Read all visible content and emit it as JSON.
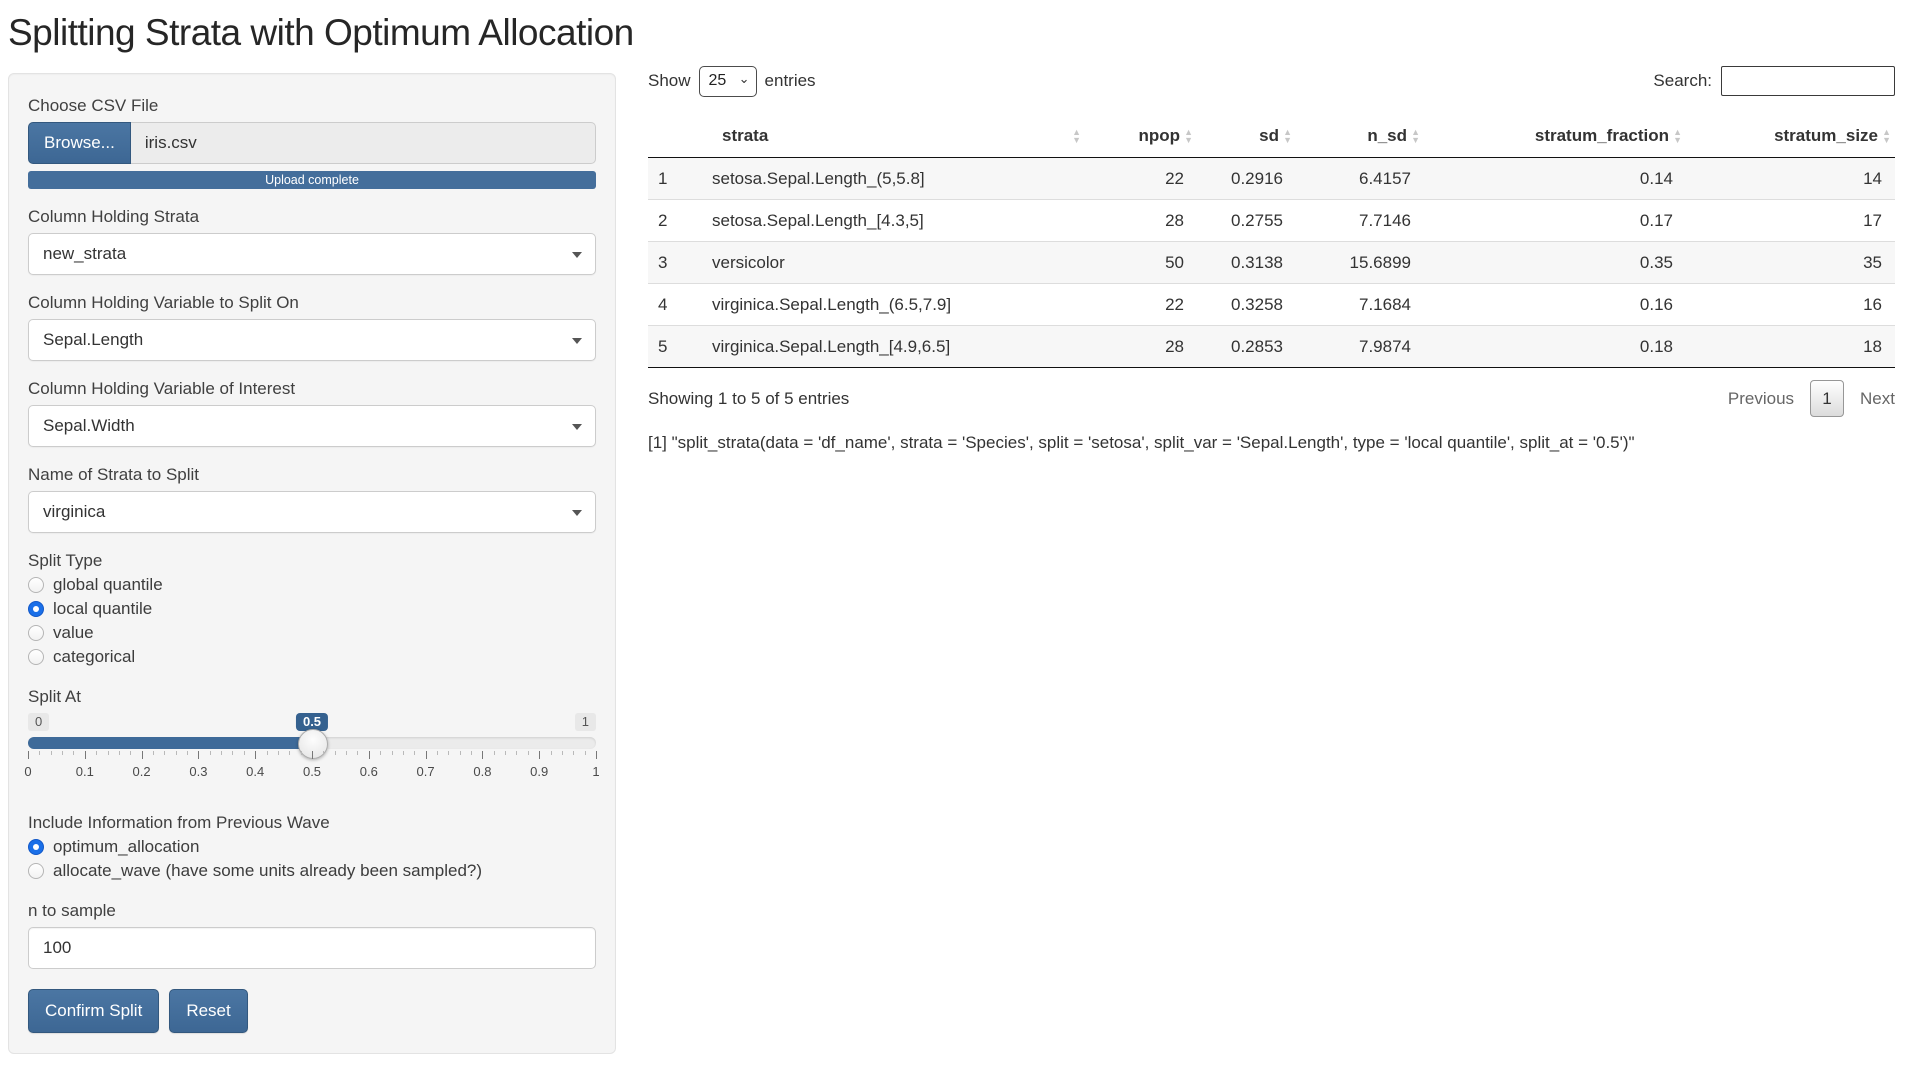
{
  "title": "Splitting Strata with Optimum Allocation",
  "colors": {
    "primary": "#446e9b",
    "slider_fill": "#3e6a99",
    "slider_badge": "#35618f",
    "radio_selected": "#1a6fe8"
  },
  "sidebar": {
    "file_input": {
      "label": "Choose CSV File",
      "browse_label": "Browse...",
      "filename": "iris.csv",
      "progress_text": "Upload complete"
    },
    "selects": [
      {
        "label": "Column Holding Strata",
        "value": "new_strata"
      },
      {
        "label": "Column Holding Variable to Split On",
        "value": "Sepal.Length"
      },
      {
        "label": "Column Holding Variable of Interest",
        "value": "Sepal.Width"
      },
      {
        "label": "Name of Strata to Split",
        "value": "virginica"
      }
    ],
    "split_type": {
      "label": "Split Type",
      "options": [
        {
          "label": "global quantile",
          "selected": false
        },
        {
          "label": "local quantile",
          "selected": true
        },
        {
          "label": "value",
          "selected": false
        },
        {
          "label": "categorical",
          "selected": false
        }
      ]
    },
    "slider": {
      "label": "Split At",
      "min": "0",
      "max": "1",
      "value": "0.5",
      "ticks": [
        "0",
        "0.1",
        "0.2",
        "0.3",
        "0.4",
        "0.5",
        "0.6",
        "0.7",
        "0.8",
        "0.9",
        "1"
      ]
    },
    "previous_wave": {
      "label": "Include Information from Previous Wave",
      "options": [
        {
          "label": "optimum_allocation",
          "selected": true
        },
        {
          "label": "allocate_wave (have some units already been sampled?)",
          "selected": false
        }
      ]
    },
    "n_to_sample": {
      "label": "n to sample",
      "value": "100"
    },
    "buttons": {
      "confirm": "Confirm Split",
      "reset": "Reset"
    }
  },
  "main": {
    "length_control": {
      "prefix": "Show",
      "value": "25",
      "suffix": "entries"
    },
    "search": {
      "label": "Search:",
      "value": ""
    },
    "table": {
      "columns": [
        "",
        "strata",
        "npop",
        "sd",
        "n_sd",
        "stratum_fraction",
        "stratum_size"
      ],
      "rows": [
        [
          "1",
          "setosa.Sepal.Length_(5,5.8]",
          "22",
          "0.2916",
          "6.4157",
          "0.14",
          "14"
        ],
        [
          "2",
          "setosa.Sepal.Length_[4.3,5]",
          "28",
          "0.2755",
          "7.7146",
          "0.17",
          "17"
        ],
        [
          "3",
          "versicolor",
          "50",
          "0.3138",
          "15.6899",
          "0.35",
          "35"
        ],
        [
          "4",
          "virginica.Sepal.Length_(6.5,7.9]",
          "22",
          "0.3258",
          "7.1684",
          "0.16",
          "16"
        ],
        [
          "5",
          "virginica.Sepal.Length_[4.9,6.5]",
          "28",
          "0.2853",
          "7.9874",
          "0.18",
          "18"
        ]
      ]
    },
    "info": "Showing 1 to 5 of 5 entries",
    "pagination": {
      "previous": "Previous",
      "page": "1",
      "next": "Next"
    },
    "console_output": "[1] \"split_strata(data = 'df_name', strata = 'Species', split = 'setosa', split_var = 'Sepal.Length', type = 'local quantile', split_at = '0.5')\""
  }
}
